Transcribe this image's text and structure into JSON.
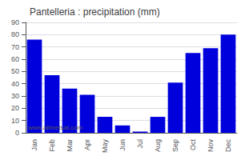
{
  "chart_data": {
    "type": "bar",
    "title": "Pantelleria : precipitation (mm)",
    "categories": [
      "Jan",
      "Feb",
      "Mar",
      "Apr",
      "May",
      "Jun",
      "Jul",
      "Aug",
      "Sep",
      "Oct",
      "Nov",
      "Dec"
    ],
    "values": [
      76,
      47,
      36,
      31,
      13,
      6,
      1,
      13,
      41,
      65,
      69,
      80
    ],
    "color": "#0000dd",
    "ylim": [
      0,
      90
    ],
    "yticks": [
      0,
      10,
      20,
      30,
      40,
      50,
      60,
      70,
      80,
      90
    ],
    "grid": true,
    "annotations": [
      "www.allmetsat.com"
    ]
  }
}
